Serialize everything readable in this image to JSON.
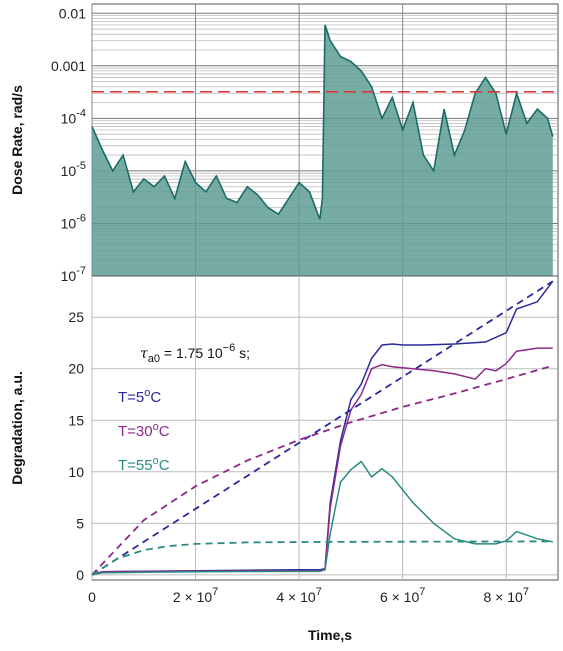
{
  "chart_data": [
    {
      "type": "area",
      "ylabel": "Dose Rate, rad/s",
      "yscale": "log",
      "ylim": [
        1e-07,
        0.015
      ],
      "xlim": [
        0,
        90000000
      ],
      "y_tick_labels": [
        "10^-7",
        "10^-6",
        "10^-5",
        "10^-4",
        "0.001",
        "0.01"
      ],
      "grid": true,
      "fill_color": "#5f9e95",
      "line_color": "#1d6b66",
      "threshold": {
        "value": 0.00032,
        "color": "#e03030",
        "style": "dashed"
      },
      "x": [
        0,
        2000000,
        4000000,
        6000000,
        8000000,
        10000000,
        12000000,
        14000000,
        16000000,
        18000000,
        20000000,
        22000000,
        24000000,
        26000000,
        28000000,
        30000000,
        32000000,
        34000000,
        36000000,
        38000000,
        40000000,
        42000000,
        44000000,
        44500000,
        45000000,
        46000000,
        48000000,
        50000000,
        52000000,
        54000000,
        56000000,
        58000000,
        60000000,
        62000000,
        64000000,
        66000000,
        68000000,
        70000000,
        72000000,
        74000000,
        76000000,
        78000000,
        80000000,
        82000000,
        84000000,
        86000000,
        88000000,
        89000000
      ],
      "values": [
        7e-05,
        2.5e-05,
        1e-05,
        2e-05,
        4e-06,
        7e-06,
        5e-06,
        8e-06,
        3e-06,
        1.5e-05,
        6e-06,
        4e-06,
        8e-06,
        3e-06,
        2.5e-06,
        5e-06,
        3.5e-06,
        2e-06,
        1.5e-06,
        3e-06,
        6e-06,
        4e-06,
        1.2e-06,
        3e-06,
        0.006,
        0.003,
        0.0015,
        0.0012,
        0.0008,
        0.0004,
        0.0001,
        0.00025,
        6e-05,
        0.0002,
        2e-05,
        1e-05,
        0.00015,
        2e-05,
        6e-05,
        0.0003,
        0.0006,
        0.0003,
        5e-05,
        0.0003,
        8e-05,
        0.00015,
        0.0001,
        4.5e-05
      ]
    },
    {
      "type": "line",
      "ylabel": "Degradation, a.u.",
      "xlabel": "Time,s",
      "xlim": [
        0,
        90000000
      ],
      "ylim": [
        -0.5,
        29
      ],
      "x_tick_values": [
        0,
        20000000,
        40000000,
        60000000,
        80000000
      ],
      "x_tick_labels": [
        {
          "base": "0",
          "exp": ""
        },
        {
          "base": "2 × 10",
          "exp": "7"
        },
        {
          "base": "4 × 10",
          "exp": "7"
        },
        {
          "base": "6 × 10",
          "exp": "7"
        },
        {
          "base": "8 × 10",
          "exp": "7"
        }
      ],
      "y_tick_values": [
        0,
        5,
        10,
        15,
        20,
        25
      ],
      "y_tick_labels": [
        "0",
        "5",
        "10",
        "15",
        "20",
        "25"
      ],
      "grid": true,
      "annotation": {
        "symbol": "τ",
        "sub": "a0",
        "text": " = 1.75 10",
        "exp": "−6",
        "tail": " s;"
      },
      "series": [
        {
          "name": "T=5°C",
          "legend": {
            "prefix": "T=5",
            "sup": "o",
            "suffix": "C"
          },
          "color": "#2a2a9c",
          "style": "solid",
          "x": [
            0,
            2000000,
            10000000,
            20000000,
            30000000,
            40000000,
            44000000,
            45000000,
            46000000,
            48000000,
            50000000,
            52000000,
            54000000,
            56000000,
            58000000,
            60000000,
            64000000,
            70000000,
            76000000,
            80000000,
            82000000,
            86000000,
            89000000
          ],
          "values": [
            0,
            0.3,
            0.35,
            0.4,
            0.45,
            0.5,
            0.5,
            0.6,
            7,
            13,
            17,
            18.5,
            21,
            22.3,
            22.4,
            22.3,
            22.3,
            22.4,
            22.6,
            23.5,
            25.8,
            26.5,
            28.5
          ]
        },
        {
          "name": "T=30°C",
          "legend": {
            "prefix": "T=30",
            "sup": "o",
            "suffix": "C"
          },
          "color": "#8a2a8a",
          "style": "solid",
          "x": [
            0,
            2000000,
            10000000,
            20000000,
            30000000,
            40000000,
            44000000,
            45000000,
            46000000,
            48000000,
            50000000,
            52000000,
            54000000,
            56000000,
            58000000,
            62000000,
            66000000,
            70000000,
            74000000,
            76000000,
            78000000,
            80000000,
            82000000,
            86000000,
            89000000
          ],
          "values": [
            0,
            0.3,
            0.33,
            0.36,
            0.38,
            0.4,
            0.4,
            0.5,
            6.5,
            12.5,
            16,
            17.5,
            20,
            20.4,
            20.2,
            20,
            19.8,
            19.5,
            19,
            20,
            19.8,
            20.5,
            21.7,
            22,
            22
          ]
        },
        {
          "name": "T=55°C",
          "legend": {
            "prefix": "T=55",
            "sup": "o",
            "suffix": "C"
          },
          "color": "#2a8a80",
          "style": "solid",
          "x": [
            0,
            2000000,
            10000000,
            20000000,
            30000000,
            40000000,
            44000000,
            45000000,
            46000000,
            48000000,
            50000000,
            52000000,
            54000000,
            56000000,
            58000000,
            62000000,
            66000000,
            70000000,
            74000000,
            78000000,
            80000000,
            82000000,
            86000000,
            89000000
          ],
          "values": [
            0,
            0.2,
            0.25,
            0.3,
            0.32,
            0.33,
            0.33,
            0.5,
            4,
            9,
            10.2,
            11,
            9.5,
            10.3,
            9.5,
            7,
            5,
            3.5,
            3,
            3,
            3.3,
            4.2,
            3.5,
            3.2
          ]
        },
        {
          "color": "#2a2a9c",
          "style": "dashed",
          "x": [
            0,
            89000000
          ],
          "values": [
            0,
            28.5
          ]
        },
        {
          "color": "#8a2a8a",
          "style": "dashed",
          "x": [
            0,
            10000000,
            20000000,
            30000000,
            40000000,
            50000000,
            60000000,
            70000000,
            80000000,
            89000000
          ],
          "values": [
            0,
            5.3,
            8.6,
            11.1,
            13.1,
            14.8,
            16.3,
            17.6,
            19,
            20.3
          ]
        },
        {
          "color": "#2a8a80",
          "style": "dashed",
          "x": [
            0,
            5000000,
            10000000,
            15000000,
            20000000,
            30000000,
            45000000,
            60000000,
            89000000
          ],
          "values": [
            0,
            1.6,
            2.4,
            2.8,
            3,
            3.15,
            3.2,
            3.22,
            3.25
          ]
        }
      ]
    }
  ]
}
